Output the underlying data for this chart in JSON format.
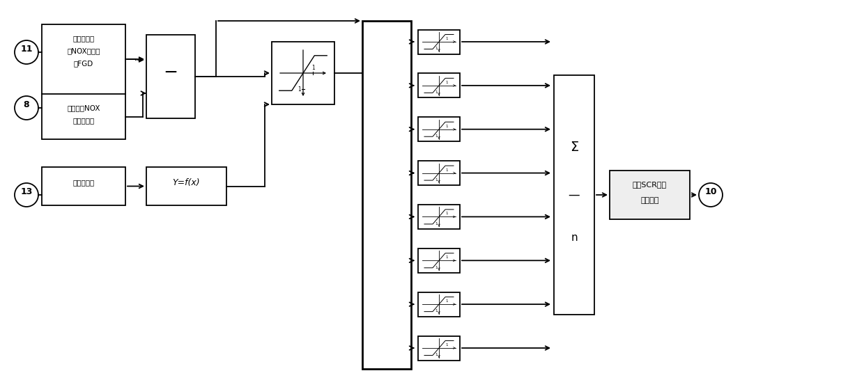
{
  "bg_color": "#ffffff",
  "line_color": "#000000",
  "figsize": [
    12.4,
    5.56
  ],
  "dpi": 100,
  "num_branches": 8,
  "box1_lines": [
    "脱硝烟囱入",
    "口NOX浓度来",
    "自FGD"
  ],
  "box2_lines": [
    "烟囱入口NOX",
    "浓度设定值"
  ],
  "box3_lines": [
    "锅炉总风量"
  ],
  "fx_label": "Y=f(x)",
  "sum_top": "Σ",
  "sum_div": "—",
  "sum_bot": "n",
  "out_line1": "脱硝SCR管道",
  "out_line2": "补偿差值",
  "c11": "11",
  "c8": "8",
  "c13": "13",
  "c10": "10"
}
